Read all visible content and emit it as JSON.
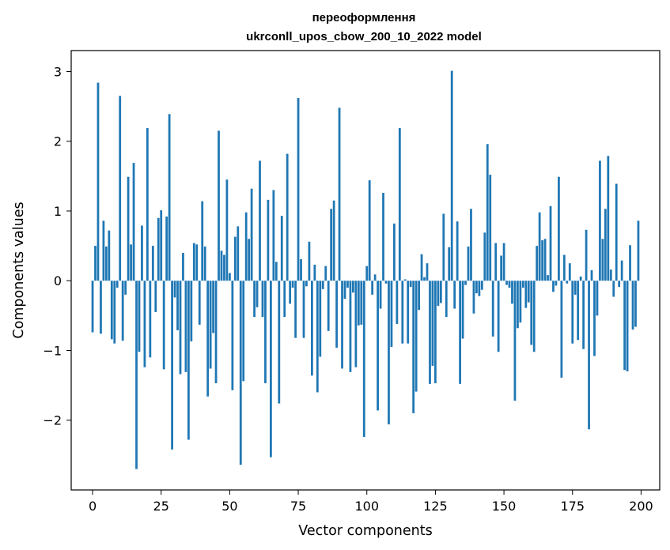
{
  "chart_data": {
    "type": "bar",
    "title_lines": [
      "переоформлення",
      "ukrconll_upos_cbow_200_10_2022 model"
    ],
    "xlabel": "Vector components",
    "ylabel": "Components values",
    "xlim": [
      -7.8,
      206.8
    ],
    "ylim": [
      -3.0,
      3.3
    ],
    "x_ticks": [
      0,
      25,
      50,
      75,
      100,
      125,
      150,
      175,
      200
    ],
    "x_tick_labels": [
      "0",
      "25",
      "50",
      "75",
      "100",
      "125",
      "150",
      "175",
      "200"
    ],
    "y_ticks": [
      -2,
      -1,
      0,
      1,
      2,
      3
    ],
    "y_tick_labels": [
      "−2",
      "−1",
      "0",
      "1",
      "2",
      "3"
    ],
    "bar_color": "#1f77b4",
    "grid": false,
    "legend": "none",
    "values": [
      -0.74,
      0.5,
      2.84,
      -0.76,
      0.86,
      0.49,
      0.72,
      -0.84,
      -0.9,
      -0.1,
      2.65,
      -0.86,
      -0.2,
      1.49,
      0.52,
      1.69,
      -2.7,
      -1.02,
      0.79,
      -1.24,
      2.19,
      -1.1,
      0.5,
      -0.45,
      0.9,
      1.01,
      -1.27,
      0.92,
      2.39,
      -2.42,
      -0.24,
      -0.71,
      -1.34,
      0.4,
      -1.31,
      -2.28,
      -0.87,
      0.54,
      0.52,
      -0.63,
      1.14,
      0.49,
      -1.66,
      -1.26,
      -0.75,
      -1.47,
      2.15,
      0.43,
      0.37,
      1.45,
      0.11,
      -1.57,
      0.63,
      0.78,
      -2.64,
      -1.44,
      0.98,
      0.6,
      1.32,
      -0.52,
      -0.38,
      1.72,
      -0.52,
      -1.47,
      1.16,
      -2.53,
      1.3,
      0.27,
      -1.76,
      0.93,
      -0.52,
      1.82,
      -0.33,
      -0.1,
      -0.82,
      2.62,
      0.31,
      -0.82,
      -0.08,
      0.56,
      -1.36,
      0.23,
      -1.6,
      -1.09,
      -0.12,
      0.21,
      -0.72,
      1.03,
      1.15,
      -0.96,
      2.48,
      -1.26,
      -0.26,
      -0.1,
      -1.31,
      -0.17,
      -1.24,
      -0.64,
      -0.63,
      -2.24,
      0.21,
      1.44,
      -0.2,
      0.09,
      -1.86,
      -0.4,
      1.26,
      -0.04,
      -2.06,
      -0.95,
      0.82,
      -0.62,
      2.19,
      -0.9,
      0.02,
      -0.9,
      -0.09,
      -1.9,
      -1.59,
      -0.42,
      0.38,
      0.05,
      0.25,
      -1.48,
      -1.22,
      -1.47,
      -0.36,
      -0.32,
      0.96,
      -0.52,
      0.48,
      3.01,
      -0.4,
      0.85,
      -1.48,
      -0.83,
      -0.06,
      0.49,
      1.03,
      -0.47,
      -0.18,
      -0.22,
      -0.13,
      0.69,
      1.96,
      1.52,
      -0.8,
      0.54,
      -1.02,
      0.36,
      0.54,
      -0.06,
      -0.1,
      -0.33,
      -1.72,
      -0.68,
      -0.6,
      -0.1,
      -0.39,
      -0.31,
      -0.92,
      -1.02,
      0.5,
      0.98,
      0.58,
      0.6,
      0.08,
      1.07,
      -0.16,
      -0.07,
      1.49,
      -1.39,
      0.37,
      -0.04,
      0.25,
      -0.9,
      -0.2,
      -0.85,
      0.06,
      -0.98,
      0.73,
      -2.13,
      0.15,
      -1.08,
      -0.5,
      1.72,
      0.6,
      1.03,
      1.79,
      0.16,
      -0.23,
      1.39,
      -0.09,
      0.29,
      -1.28,
      -1.3,
      0.51,
      -0.7,
      -0.66,
      0.86
    ]
  }
}
